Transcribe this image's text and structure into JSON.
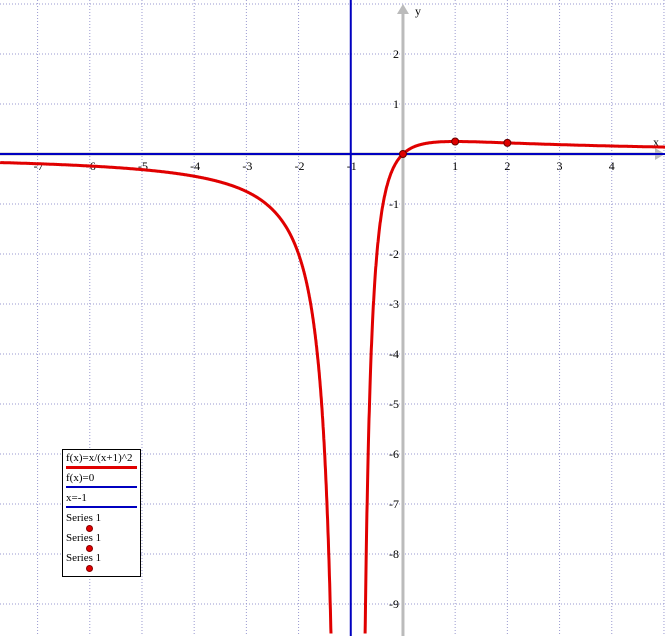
{
  "chart_data": {
    "type": "line",
    "xlabel": "x",
    "ylabel": "y",
    "xlim": [
      -7.72,
      5.02
    ],
    "ylim": [
      -9.64,
      3.08
    ],
    "grid": true,
    "x_ticks": [
      -7,
      -6,
      -5,
      -4,
      -3,
      -2,
      -1,
      1,
      2,
      3,
      4
    ],
    "y_ticks": [
      2,
      1,
      -1,
      -2,
      -3,
      -4,
      -5,
      -6,
      -7,
      -8,
      -9
    ],
    "legend_position": "bottom-left",
    "series": [
      {
        "name": "f(x)=x/(x+1)^2",
        "kind": "function",
        "expr": "x/(x+1)^2",
        "color": "#e00000"
      },
      {
        "name": "f(x)=0",
        "kind": "function",
        "expr": "0",
        "color": "#0000c0"
      },
      {
        "name": "x=-1",
        "kind": "vertical",
        "x": -1,
        "color": "#0000c0"
      },
      {
        "name": "Series 1",
        "kind": "points",
        "points": [
          [
            0,
            0
          ]
        ],
        "color": "#e00000"
      },
      {
        "name": "Series 1",
        "kind": "points",
        "points": [
          [
            1,
            0.25
          ]
        ],
        "color": "#e00000"
      },
      {
        "name": "Series 1",
        "kind": "points",
        "points": [
          [
            2,
            0.2222
          ]
        ],
        "color": "#e00000"
      }
    ]
  }
}
